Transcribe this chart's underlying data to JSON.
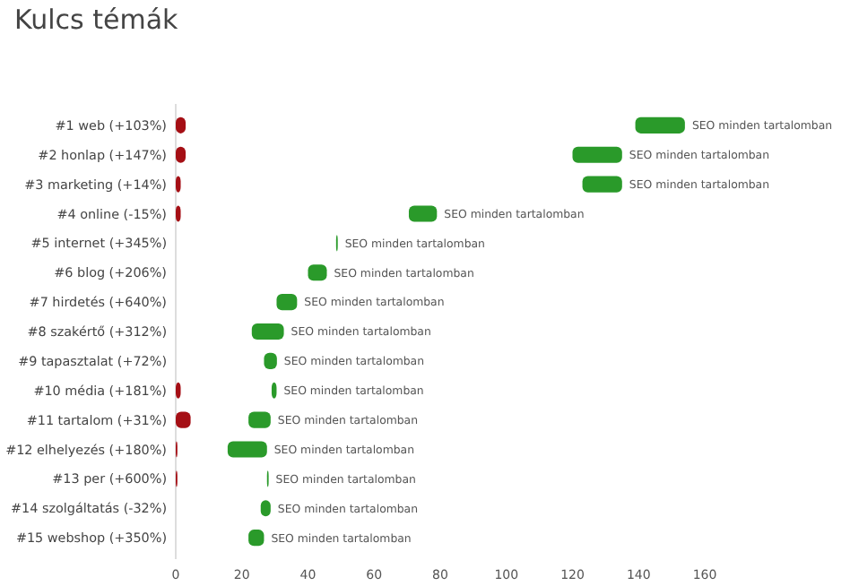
{
  "chart_data": {
    "type": "bar",
    "orientation": "horizontal",
    "title": "Kulcs témák",
    "categories": [
      "#1 web (+103%)",
      "#2 honlap (+147%)",
      "#3 marketing (+14%)",
      "#4 online (-15%)",
      "#5 internet (+345%)",
      "#6 blog (+206%)",
      "#7 hirdetés (+640%)",
      "#8 szakértő (+312%)",
      "#9 tapasztalat (+72%)",
      "#10 média (+181%)",
      "#11 tartalom (+31%)",
      "#12 elhelyezés (+180%)",
      "#13 per (+600%)",
      "#14 szolgáltatás (-32%)",
      "#15 webshop (+350%)"
    ],
    "series": [
      {
        "color": "#a50f15",
        "values": [
          3,
          3,
          1.5,
          1.5,
          null,
          null,
          null,
          null,
          null,
          1.5,
          4.5,
          0.5,
          0.5,
          null,
          null
        ]
      },
      {
        "name": "SEO minden tartalomban",
        "color": "#2a9a2a",
        "base": [
          139,
          120,
          123,
          70.5,
          48.5,
          40,
          30.5,
          23,
          26.7,
          29,
          22,
          15.7,
          27.6,
          25.7,
          22
        ],
        "values": [
          15,
          15,
          12,
          8.5,
          0.5,
          5.7,
          6.2,
          9.7,
          3.9,
          1.5,
          6.7,
          11.9,
          0.5,
          3,
          4.7
        ]
      }
    ],
    "xlim": [
      0,
      160
    ],
    "xticks": [
      0,
      20,
      40,
      60,
      80,
      100,
      120,
      140,
      160
    ],
    "grid": false
  }
}
